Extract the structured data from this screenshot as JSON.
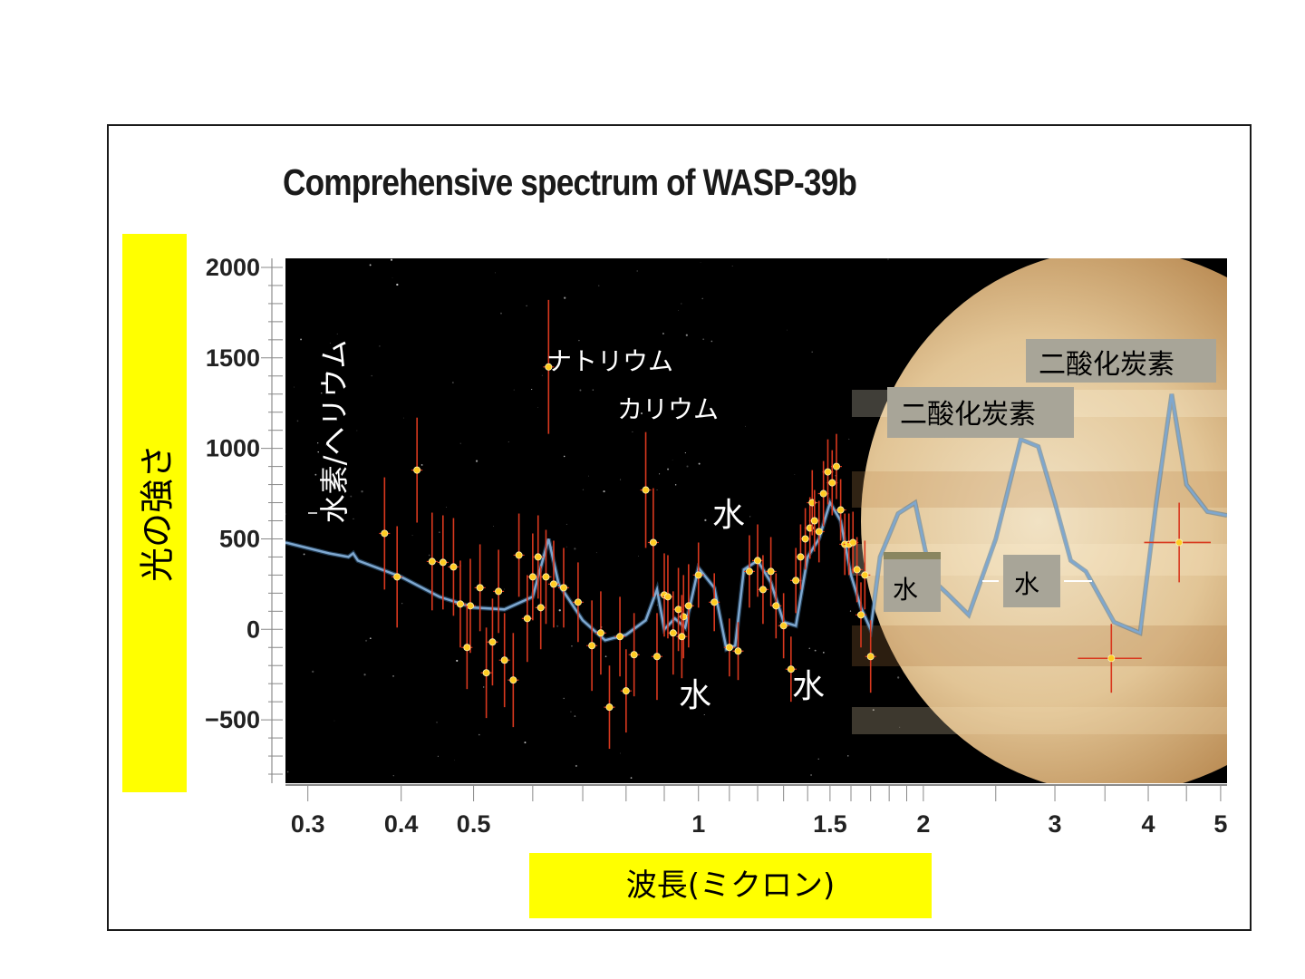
{
  "chart_data": {
    "type": "scatter",
    "title": "Comprehensive spectrum of WASP-39b",
    "xlabel": "波長(ミクロン)",
    "ylabel": "光の強さ",
    "x_scale": "log",
    "xlim": [
      0.28,
      5.1
    ],
    "ylim": [
      -850,
      2050
    ],
    "x_ticks": [
      0.3,
      0.4,
      0.5,
      1,
      1.5,
      2,
      3,
      4,
      5
    ],
    "x_tick_labels": [
      "0.3",
      "0.4",
      "0.5",
      "1",
      "1.5",
      "2",
      "3",
      "4",
      "5"
    ],
    "y_ticks": [
      2000,
      1500,
      1000,
      500,
      0,
      -500
    ],
    "y_tick_labels": [
      "2000",
      "1500",
      "1000",
      "500",
      "0",
      "−500"
    ],
    "series": [
      {
        "kind": "points",
        "color": "#ffcc22",
        "error_color": "#d9381e",
        "points": [
          [
            0.38,
            530,
            0,
            310
          ],
          [
            0.395,
            290,
            0,
            280
          ],
          [
            0.42,
            880,
            0,
            290
          ],
          [
            0.44,
            375,
            0,
            270
          ],
          [
            0.455,
            370,
            0,
            260
          ],
          [
            0.47,
            345,
            0,
            270
          ],
          [
            0.48,
            140,
            0,
            240
          ],
          [
            0.495,
            130,
            0,
            260
          ],
          [
            0.49,
            -100,
            0,
            230
          ],
          [
            0.51,
            230,
            0,
            240
          ],
          [
            0.52,
            -240,
            0,
            250
          ],
          [
            0.53,
            -70,
            0,
            240
          ],
          [
            0.54,
            210,
            0,
            230
          ],
          [
            0.55,
            -170,
            0,
            260
          ],
          [
            0.565,
            -280,
            0,
            260
          ],
          [
            0.575,
            410,
            0,
            230
          ],
          [
            0.59,
            60,
            0,
            240
          ],
          [
            0.6,
            290,
            0,
            240
          ],
          [
            0.61,
            400,
            0,
            230
          ],
          [
            0.615,
            120,
            0,
            230
          ],
          [
            0.625,
            290,
            0,
            260
          ],
          [
            0.63,
            1450,
            0,
            370
          ],
          [
            0.64,
            250,
            0,
            240
          ],
          [
            0.66,
            230,
            0,
            220
          ],
          [
            0.69,
            150,
            0,
            220
          ],
          [
            0.72,
            -90,
            0,
            250
          ],
          [
            0.74,
            -20,
            0,
            230
          ],
          [
            0.76,
            -430,
            0,
            230
          ],
          [
            0.785,
            -40,
            0,
            220
          ],
          [
            0.8,
            -340,
            0,
            230
          ],
          [
            0.82,
            -140,
            0,
            230
          ],
          [
            0.85,
            770,
            0,
            320
          ],
          [
            0.87,
            480,
            0,
            300
          ],
          [
            0.88,
            -150,
            0,
            240
          ],
          [
            0.9,
            190,
            0,
            230
          ],
          [
            0.91,
            180,
            0,
            230
          ],
          [
            0.925,
            -20,
            0,
            230
          ],
          [
            0.94,
            110,
            0,
            230
          ],
          [
            0.955,
            70,
            0,
            230
          ],
          [
            0.97,
            130,
            0,
            230
          ],
          [
            0.95,
            -40,
            0,
            230
          ],
          [
            1.0,
            300,
            0,
            180
          ],
          [
            1.05,
            150,
            0,
            160
          ],
          [
            1.1,
            -100,
            0,
            160
          ],
          [
            1.13,
            -120,
            0,
            160
          ],
          [
            1.17,
            320,
            0,
            200
          ],
          [
            1.2,
            380,
            0,
            200
          ],
          [
            1.22,
            220,
            0,
            190
          ],
          [
            1.25,
            320,
            0,
            190
          ],
          [
            1.27,
            130,
            0,
            180
          ],
          [
            1.3,
            20,
            0,
            180
          ],
          [
            1.33,
            -220,
            0,
            180
          ],
          [
            1.35,
            270,
            0,
            180
          ],
          [
            1.37,
            400,
            0,
            180
          ],
          [
            1.39,
            500,
            0,
            170
          ],
          [
            1.41,
            560,
            0,
            170
          ],
          [
            1.42,
            700,
            0,
            180
          ],
          [
            1.43,
            600,
            0,
            170
          ],
          [
            1.45,
            540,
            0,
            170
          ],
          [
            1.47,
            750,
            0,
            180
          ],
          [
            1.49,
            870,
            0,
            180
          ],
          [
            1.51,
            810,
            0,
            180
          ],
          [
            1.53,
            900,
            0,
            180
          ],
          [
            1.55,
            660,
            0,
            170
          ],
          [
            1.57,
            470,
            0,
            170
          ],
          [
            1.59,
            470,
            0,
            170
          ],
          [
            1.61,
            480,
            0,
            170
          ],
          [
            1.63,
            330,
            0,
            180
          ],
          [
            1.65,
            80,
            0,
            180
          ],
          [
            1.67,
            300,
            0,
            190
          ],
          [
            1.7,
            -150,
            0,
            200
          ],
          [
            3.57,
            -160,
            0.35,
            190
          ],
          [
            4.4,
            480,
            0.45,
            220
          ]
        ]
      },
      {
        "kind": "line",
        "color": "#7ea7cf",
        "x": [
          0.28,
          0.32,
          0.34,
          0.345,
          0.35,
          0.4,
          0.45,
          0.5,
          0.55,
          0.6,
          0.63,
          0.65,
          0.7,
          0.75,
          0.8,
          0.85,
          0.88,
          0.9,
          0.93,
          0.96,
          1.0,
          1.05,
          1.09,
          1.12,
          1.15,
          1.2,
          1.25,
          1.3,
          1.35,
          1.4,
          1.45,
          1.5,
          1.55,
          1.6,
          1.65,
          1.7,
          1.75,
          1.85,
          1.95,
          2.05,
          2.15,
          2.3,
          2.5,
          2.7,
          2.85,
          3.0,
          3.15,
          3.3,
          3.6,
          3.9,
          4.1,
          4.3,
          4.5,
          4.8,
          5.1
        ],
        "y": [
          480,
          420,
          400,
          420,
          380,
          290,
          180,
          120,
          110,
          180,
          500,
          250,
          50,
          -60,
          -30,
          50,
          220,
          0,
          60,
          10,
          340,
          230,
          -110,
          -90,
          330,
          380,
          260,
          40,
          20,
          400,
          500,
          700,
          600,
          300,
          120,
          0,
          400,
          640,
          700,
          280,
          200,
          80,
          500,
          1050,
          1010,
          700,
          380,
          320,
          40,
          -20,
          700,
          1300,
          800,
          650,
          630
        ]
      }
    ],
    "annotations": [
      "水素/ヘリウム",
      "ナトリウム",
      "カリウム",
      "水",
      "水",
      "水",
      "二酸化炭素",
      "二酸化炭素",
      "水",
      "水"
    ]
  },
  "colors": {
    "background_plot": "#000000",
    "ylabel_box": "#ffff00",
    "xlabel_box": "#ffff00",
    "model_line": "#7ea7cf",
    "error_bars": "#d9381e",
    "points": "#ffcc22"
  }
}
